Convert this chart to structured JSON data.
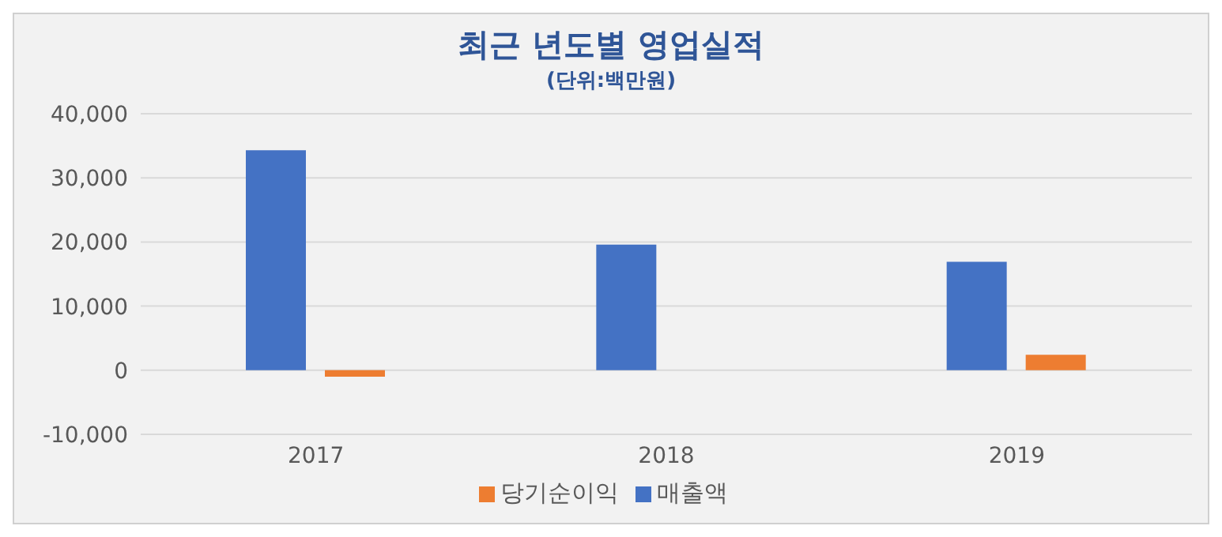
{
  "chart_data": {
    "type": "bar",
    "title": "최근 년도별 영업실적",
    "subtitle": "(단위:백만원)",
    "categories": [
      "2017",
      "2018",
      "2019"
    ],
    "series": [
      {
        "name": "매출액",
        "color": "#4472c4",
        "values": [
          34300,
          19600,
          16900
        ]
      },
      {
        "name": "당기순이익",
        "color": "#ed7d31",
        "values": [
          -1000,
          0,
          2400
        ]
      }
    ],
    "ylim": [
      -10000,
      40000
    ],
    "yticks": [
      {
        "value": -10000,
        "label": "-10,000"
      },
      {
        "value": 0,
        "label": "0"
      },
      {
        "value": 10000,
        "label": "10,000"
      },
      {
        "value": 20000,
        "label": "20,000"
      },
      {
        "value": 30000,
        "label": "30,000"
      },
      {
        "value": 40000,
        "label": "40,000"
      }
    ],
    "grid": "y",
    "legend": "bottom"
  }
}
